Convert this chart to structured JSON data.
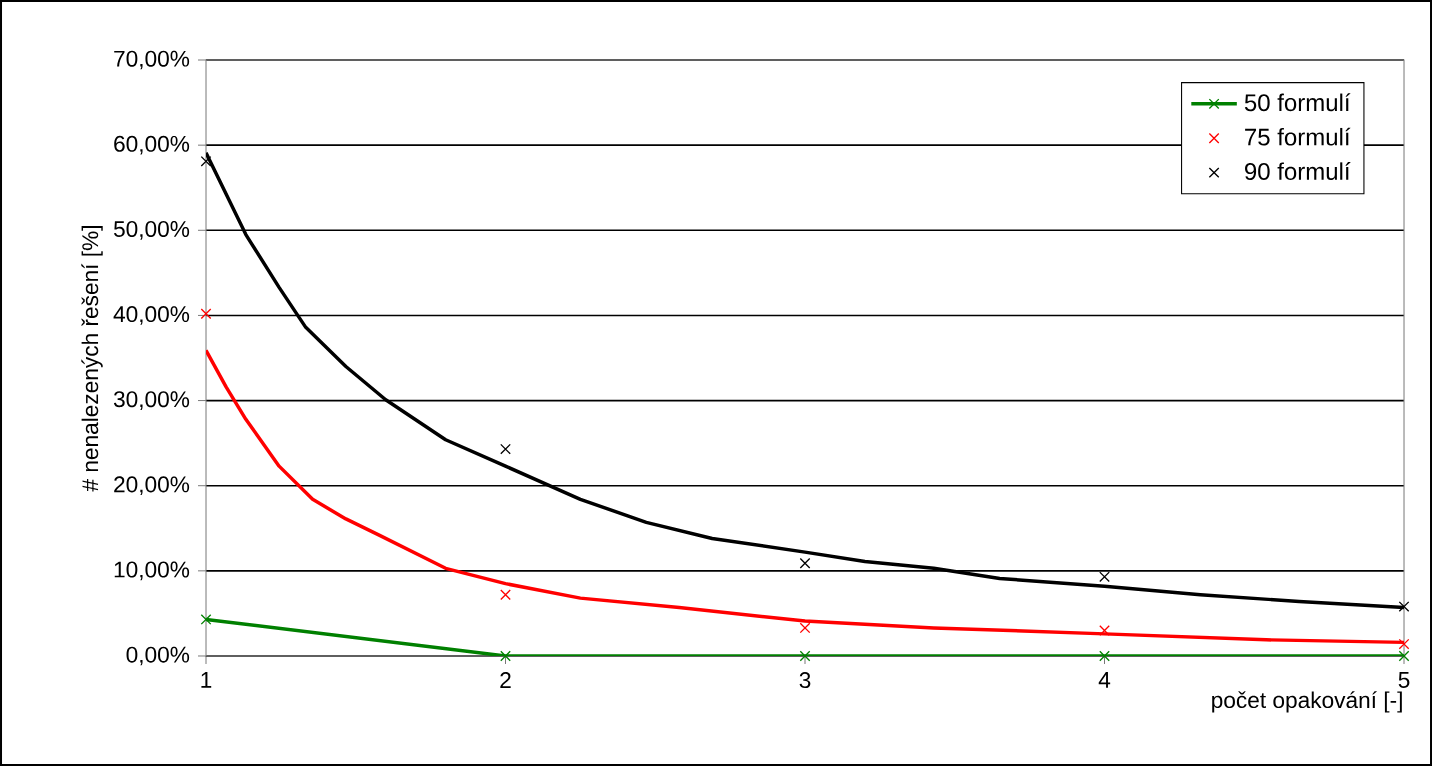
{
  "chart_data": {
    "type": "scatter",
    "xlabel": "počet opakování [-]",
    "ylabel": "# nenalezených řešení [%]",
    "xlim": [
      1,
      5
    ],
    "xticks": [
      1,
      2,
      3,
      4,
      5
    ],
    "ylim": [
      0,
      70
    ],
    "yticks": [
      {
        "value": 0,
        "label": "0,00%"
      },
      {
        "value": 10,
        "label": "10,00%"
      },
      {
        "value": 20,
        "label": "20,00%"
      },
      {
        "value": 30,
        "label": "30,00%"
      },
      {
        "value": 40,
        "label": "40,00%"
      },
      {
        "value": 50,
        "label": "50,00%"
      },
      {
        "value": 60,
        "label": "60,00%"
      },
      {
        "value": 70,
        "label": "70,00%"
      }
    ],
    "grid": "y",
    "legend": "top right",
    "series": [
      {
        "name": "50 formulí",
        "type": "line",
        "marker": "cross",
        "color": "#008000",
        "x": [
          1,
          2,
          3,
          4,
          5
        ],
        "values": [
          4.3,
          0,
          0,
          0,
          0
        ]
      },
      {
        "name": "75 formulí",
        "marker": "cross",
        "color": "#ff0000",
        "x": [
          1,
          2,
          3,
          4,
          5
        ],
        "values": [
          40.2,
          7.2,
          3.3,
          3.0,
          1.4
        ]
      },
      {
        "name": "90 formulí",
        "marker": "cross",
        "color": "#000000",
        "x": [
          1,
          2,
          3,
          4,
          5
        ],
        "values": [
          58.1,
          24.3,
          10.9,
          9.3,
          5.8
        ]
      },
      {
        "type": "line",
        "color": "#ff0000",
        "x": [
          1,
          1.067,
          1.133,
          1.244,
          1.356,
          1.467,
          1.578,
          1.8,
          2,
          2.25,
          2.58,
          3,
          3.43,
          4,
          4.54,
          5
        ],
        "values": [
          35.9,
          31.6,
          27.8,
          22.3,
          18.4,
          16.1,
          14.2,
          10.3,
          8.5,
          6.8,
          5.7,
          4.1,
          3.3,
          2.6,
          1.9,
          1.6
        ]
      },
      {
        "type": "line",
        "color": "#000000",
        "x": [
          1,
          1.133,
          1.244,
          1.333,
          1.467,
          1.6,
          1.8,
          2,
          2.25,
          2.47,
          2.69,
          3,
          3.2,
          3.43,
          3.65,
          4,
          4.32,
          4.65,
          5
        ],
        "values": [
          59.1,
          49.5,
          43.3,
          38.6,
          34,
          30.1,
          25.4,
          22.3,
          18.4,
          15.7,
          13.8,
          12.2,
          11.1,
          10.3,
          9.1,
          8.2,
          7.2,
          6.4,
          5.7
        ]
      }
    ]
  }
}
